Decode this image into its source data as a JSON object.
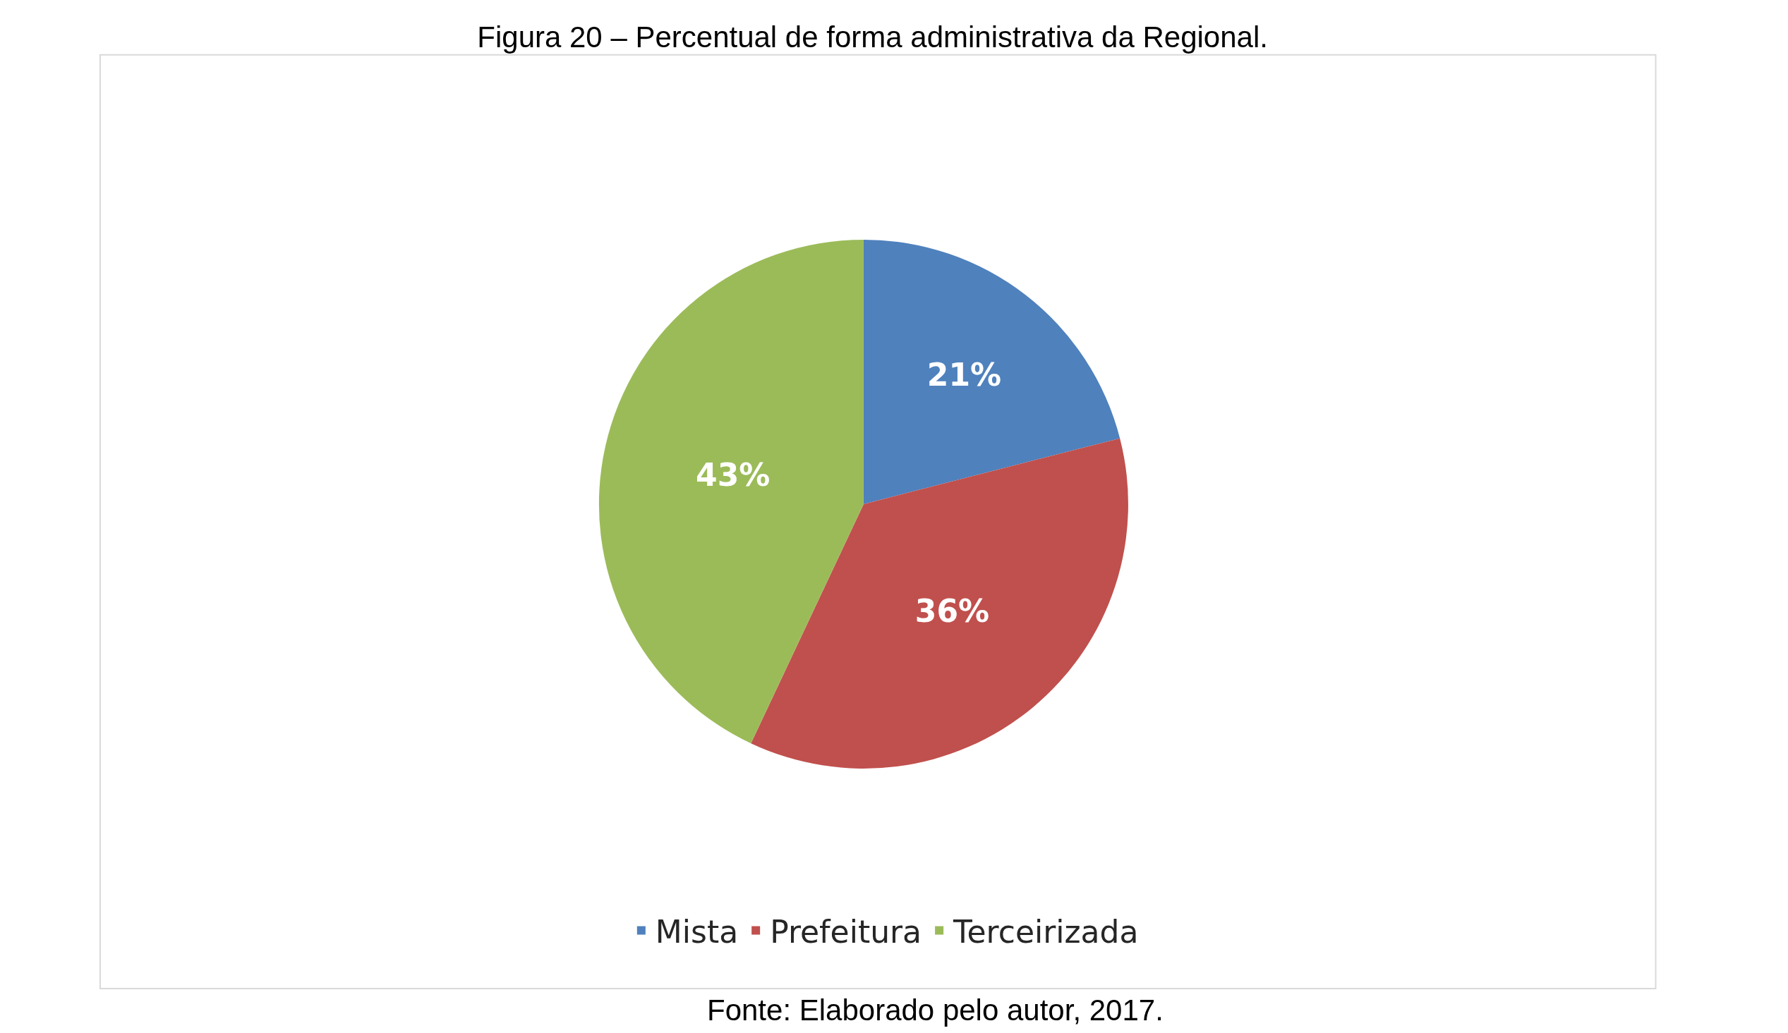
{
  "chart_data": {
    "type": "pie",
    "title": "Figura 20 – Percentual de forma administrativa da Regional.",
    "categories": [
      "Mista",
      "Prefeitura",
      "Terceirizada"
    ],
    "values": [
      21,
      36,
      43
    ],
    "colors": [
      "#4f81bd",
      "#c0504d",
      "#9bbb59"
    ],
    "value_labels": [
      "21%",
      "36%",
      "43%"
    ],
    "legend": "bottom",
    "annotations": [
      "Fonte: Elaborado pelo autor, 2017."
    ]
  }
}
